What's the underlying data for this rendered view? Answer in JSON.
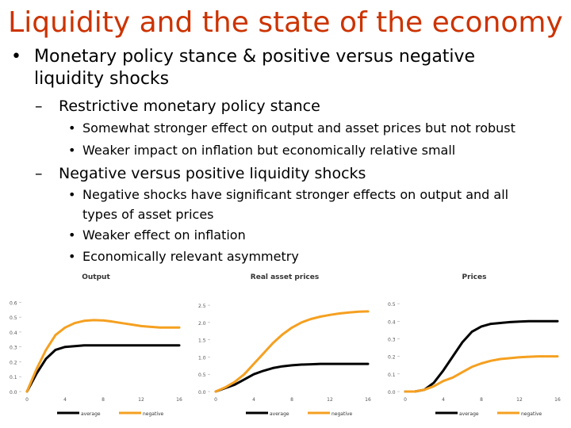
{
  "title": "Liquidity and the state of the economy",
  "bullets": {
    "l1": {
      "marker": "•",
      "line1": "Monetary policy stance & positive versus negative",
      "line2": "liquidity shocks"
    },
    "sub1": {
      "marker": "–",
      "text": "Restrictive monetary policy stance",
      "items": [
        "Somewhat stronger effect on output and asset prices but not robust",
        "Weaker impact on inflation but economically relative small"
      ]
    },
    "sub2": {
      "marker": "–",
      "text": "Negative versus positive liquidity shocks",
      "items": [
        {
          "line1": "Negative shocks have significant stronger effects on output and all",
          "line2": "types of asset prices"
        },
        {
          "line1": "Weaker effect on inflation"
        },
        {
          "line1": "Economically relevant asymmetry"
        }
      ]
    }
  },
  "colors": {
    "title": "#cc3300",
    "average": "#000000",
    "negative": "#f5a020"
  },
  "chart_data": [
    {
      "type": "line",
      "title": "Output",
      "x": [
        0,
        1,
        2,
        3,
        4,
        5,
        6,
        7,
        8,
        9,
        10,
        11,
        12,
        13,
        14,
        15,
        16
      ],
      "xticks": [
        "0",
        "4",
        "8",
        "12",
        "16"
      ],
      "ylim": [
        0,
        0.65
      ],
      "yticks": [
        "0.0",
        "0.1",
        "0.2",
        "0.3",
        "0.4",
        "0.5",
        "0.6"
      ],
      "legend": [
        "average",
        "negative"
      ],
      "series": [
        {
          "name": "average",
          "values": [
            0.0,
            0.12,
            0.22,
            0.28,
            0.3,
            0.305,
            0.31,
            0.31,
            0.31,
            0.31,
            0.31,
            0.31,
            0.31,
            0.31,
            0.31,
            0.31,
            0.31
          ]
        },
        {
          "name": "negative",
          "values": [
            0.0,
            0.15,
            0.28,
            0.38,
            0.43,
            0.46,
            0.475,
            0.48,
            0.478,
            0.47,
            0.46,
            0.45,
            0.44,
            0.435,
            0.43,
            0.43,
            0.43
          ]
        }
      ]
    },
    {
      "type": "line",
      "title": "Real asset prices",
      "x": [
        0,
        1,
        2,
        3,
        4,
        5,
        6,
        7,
        8,
        9,
        10,
        11,
        12,
        13,
        14,
        15,
        16
      ],
      "xticks": [
        "0",
        "4",
        "8",
        "12",
        "16"
      ],
      "ylim": [
        0,
        2.8
      ],
      "yticks": [
        "0.0",
        "0.5",
        "1.0",
        "1.5",
        "2.0",
        "2.5"
      ],
      "legend": [
        "average",
        "negative"
      ],
      "series": [
        {
          "name": "average",
          "values": [
            0.0,
            0.1,
            0.2,
            0.35,
            0.5,
            0.6,
            0.68,
            0.73,
            0.76,
            0.78,
            0.79,
            0.8,
            0.8,
            0.8,
            0.8,
            0.8,
            0.8
          ]
        },
        {
          "name": "negative",
          "values": [
            0.0,
            0.12,
            0.28,
            0.5,
            0.8,
            1.1,
            1.4,
            1.65,
            1.85,
            2.0,
            2.1,
            2.17,
            2.22,
            2.26,
            2.29,
            2.31,
            2.32
          ]
        }
      ]
    },
    {
      "type": "line",
      "title": "Prices",
      "x": [
        0,
        1,
        2,
        3,
        4,
        5,
        6,
        7,
        8,
        9,
        10,
        11,
        12,
        13,
        14,
        15,
        16
      ],
      "xticks": [
        "0",
        "4",
        "8",
        "12",
        "16"
      ],
      "ylim": [
        0,
        0.55
      ],
      "yticks": [
        "0.0",
        "0.1",
        "0.2",
        "0.3",
        "0.4",
        "0.5"
      ],
      "legend": [
        "average",
        "negative"
      ],
      "series": [
        {
          "name": "average",
          "values": [
            0.0,
            0.0,
            0.01,
            0.05,
            0.12,
            0.2,
            0.28,
            0.34,
            0.37,
            0.385,
            0.39,
            0.395,
            0.398,
            0.4,
            0.4,
            0.4,
            0.4
          ]
        },
        {
          "name": "negative",
          "values": [
            0.0,
            0.0,
            0.01,
            0.03,
            0.06,
            0.08,
            0.11,
            0.14,
            0.16,
            0.175,
            0.185,
            0.19,
            0.195,
            0.198,
            0.2,
            0.2,
            0.2
          ]
        }
      ]
    }
  ]
}
